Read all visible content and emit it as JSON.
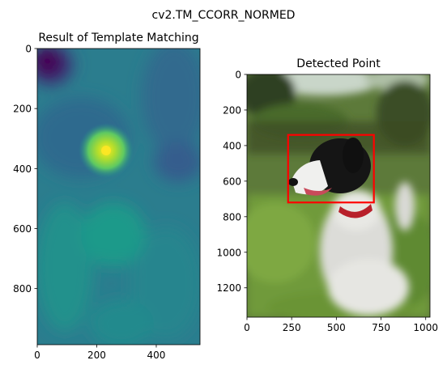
{
  "figure": {
    "suptitle": "cv2.TM_CCORR_NORMED"
  },
  "chart_data": [
    {
      "type": "heatmap",
      "title": "Result of Template Matching",
      "xlim": [
        0,
        547
      ],
      "ylim": [
        987,
        0
      ],
      "xticks": [
        0,
        200,
        400
      ],
      "yticks": [
        0,
        200,
        400,
        600,
        800
      ],
      "colormap": "viridis",
      "peak": {
        "x": 230,
        "y": 340
      },
      "grid": false
    },
    {
      "type": "image",
      "title": "Detected Point",
      "xlim": [
        0,
        1024
      ],
      "ylim": [
        1365,
        0
      ],
      "xticks": [
        0,
        250,
        500,
        750,
        1000
      ],
      "yticks": [
        0,
        200,
        400,
        600,
        800,
        1000,
        1200
      ],
      "content": "photo of black-and-white dog sitting in grass",
      "detection_box": {
        "x0": 230,
        "y0": 340,
        "x1": 710,
        "y1": 720,
        "color": "#ff0000"
      },
      "grid": false
    }
  ]
}
